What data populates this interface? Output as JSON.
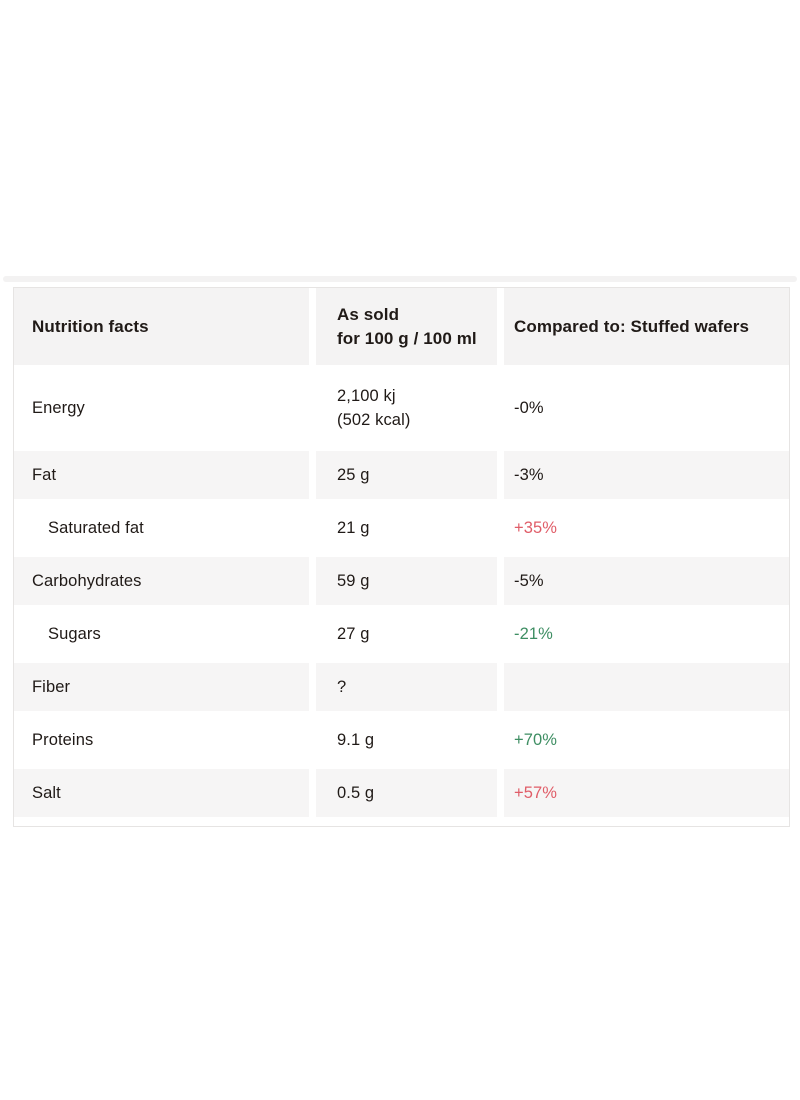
{
  "colors": {
    "increase_red": "#e05d68",
    "decrease_green": "#3e8e63",
    "neutral_text": "#201a17",
    "shaded_row_bg": "#f6f5f5",
    "header_bg": "#f4f3f3",
    "table_border": "#e6e4e3"
  },
  "table": {
    "header": {
      "col1": "Nutrition facts",
      "col2_line1": "As sold",
      "col2_line2": "for 100 g / 100 ml",
      "col3": "Compared to: Stuffed wafers"
    },
    "rows": [
      {
        "label": "Energy",
        "value": "2,100 kj",
        "value2": "(502 kcal)",
        "comparison": "-0%",
        "comp_class": "comp neutral"
      },
      {
        "label": "Fat",
        "value": "25 g",
        "comparison": "-3%",
        "comp_class": "comp neutral"
      },
      {
        "label": "Saturated fat",
        "value": "21 g",
        "comparison": "+35%",
        "comp_class": "comp red"
      },
      {
        "label": "Carbohydrates",
        "value": "59 g",
        "comparison": "-5%",
        "comp_class": "comp neutral"
      },
      {
        "label": "Sugars",
        "value": "27 g",
        "comparison": "-21%",
        "comp_class": "comp green"
      },
      {
        "label": "Fiber",
        "value": "?",
        "comparison": "",
        "comp_class": "comp neutral"
      },
      {
        "label": "Proteins",
        "value": "9.1 g",
        "comparison": "+70%",
        "comp_class": "comp green"
      },
      {
        "label": "Salt",
        "value": "0.5 g",
        "comparison": "+57%",
        "comp_class": "comp red"
      }
    ]
  }
}
